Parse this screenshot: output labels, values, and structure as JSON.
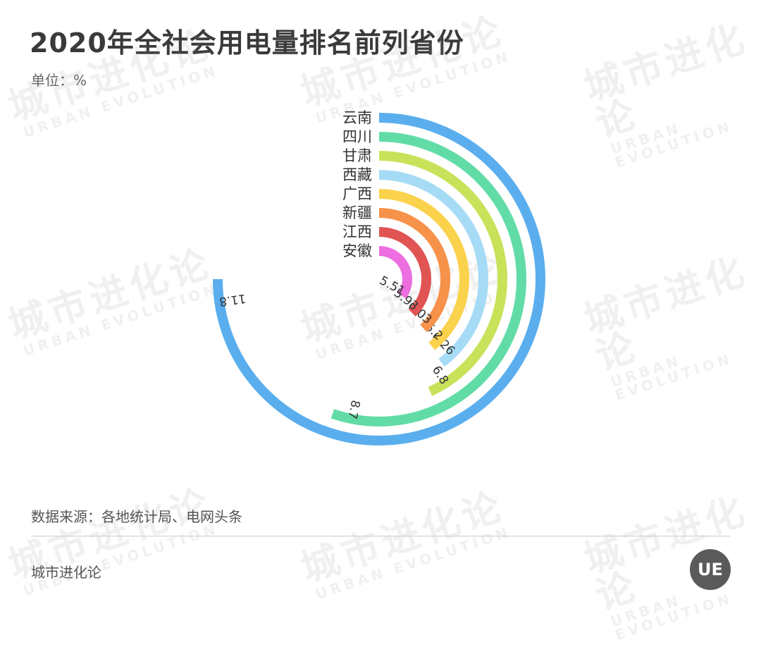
{
  "header": {
    "title": "2020年全社会用电量排名前列省份",
    "unit": "单位：%"
  },
  "footer": {
    "source": "数据来源：各地统计局、电网头条",
    "brand": "城市进化论",
    "logo_text": "UE"
  },
  "watermark": {
    "cn": "城市进化论",
    "en": "URBAN EVOLUTION"
  },
  "chart_data": {
    "type": "radial-bar",
    "unit": "%",
    "categories": [
      "云南",
      "四川",
      "甘肃",
      "西藏",
      "广西",
      "新疆",
      "江西",
      "安徽"
    ],
    "values": [
      11.8,
      8.7,
      6.8,
      6.26,
      6.2,
      6.03,
      5.93,
      5.51
    ],
    "value_labels": [
      "11.8",
      "8.7",
      "6.8",
      "6.26",
      "6.2",
      "6.03",
      "5.93",
      "5.51"
    ],
    "colors": [
      "#5aaeee",
      "#62dca6",
      "#c8e25a",
      "#a6dbf6",
      "#fbd24c",
      "#f6924a",
      "#e05454",
      "#ec6ee0"
    ],
    "max": 11.8,
    "max_angle_deg": 270
  }
}
